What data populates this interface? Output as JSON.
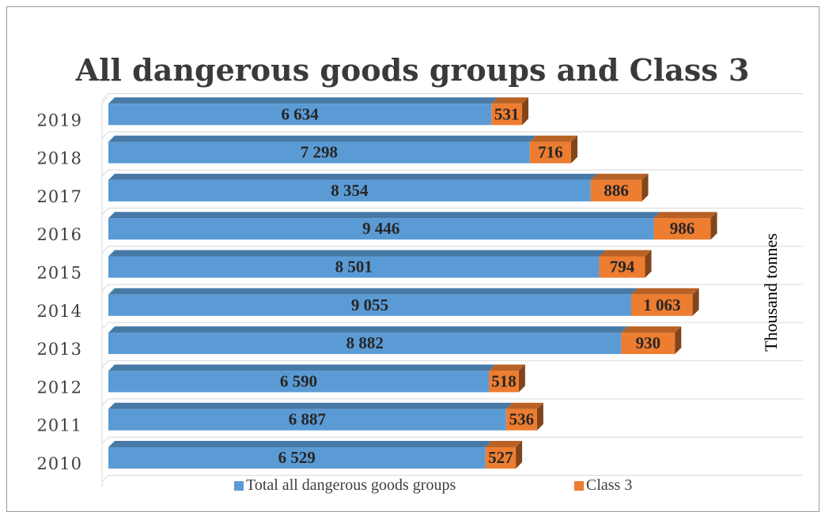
{
  "chart_data": {
    "type": "bar",
    "orientation": "horizontal",
    "stacked": true,
    "title": "All dangerous goods groups and Class 3",
    "ylabel": "Thousand tonnes",
    "categories": [
      "2010",
      "2011",
      "2012",
      "2013",
      "2014",
      "2015",
      "2016",
      "2017",
      "2018",
      "2019"
    ],
    "series": [
      {
        "name": "Total all dangerous goods groups",
        "color": "#5b9bd5",
        "values": [
          6529,
          6887,
          6590,
          8882,
          9055,
          8501,
          9446,
          8354,
          7298,
          6634
        ],
        "labels": [
          "6 529",
          "6 887",
          "6 590",
          "8 882",
          "9 055",
          "8 501",
          "9 446",
          "8 354",
          "7 298",
          "6 634"
        ]
      },
      {
        "name": "Class 3",
        "color": "#ed7d31",
        "values": [
          527,
          536,
          518,
          930,
          1063,
          794,
          986,
          886,
          716,
          531
        ],
        "labels": [
          "527",
          "536",
          "518",
          "930",
          "1 063",
          "794",
          "986",
          "886",
          "716",
          "531"
        ]
      }
    ],
    "grid": true,
    "legend": "bottom"
  }
}
